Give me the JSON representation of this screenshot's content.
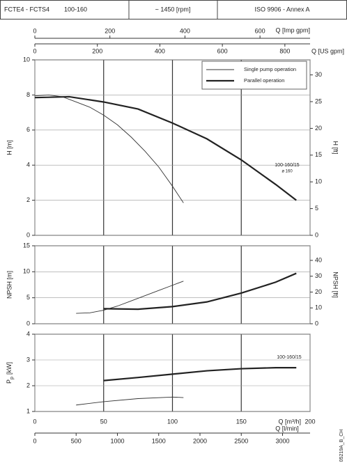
{
  "header": {
    "model": "FCTE4 - FCTS4",
    "size": "100-160",
    "speed": "~ 1450 [rpm]",
    "standard": "ISO 9906 - Annex A"
  },
  "code": "05219A_B_CH",
  "chart_data": [
    {
      "type": "line",
      "ylabel": "H [m]",
      "y2label": "H [ft]",
      "ylim": [
        0,
        10
      ],
      "yticks": [
        0,
        2,
        4,
        6,
        8,
        10
      ],
      "y2lim": [
        0,
        32.81
      ],
      "y2ticks": [
        0,
        5,
        10,
        15,
        20,
        25,
        30
      ],
      "xlim": [
        0,
        200
      ],
      "top_axes": [
        {
          "label": "Q [Imp gpm]",
          "xlim": [
            0,
            733.4
          ],
          "xticks": [
            0,
            200,
            400,
            600
          ]
        },
        {
          "label": "Q [US gpm]",
          "xlim": [
            0,
            880.6
          ],
          "xticks": [
            0,
            200,
            400,
            600,
            800
          ]
        }
      ],
      "annotations": [
        "100-160/15",
        "ø 160"
      ],
      "series": [
        {
          "name": "Single pump operation",
          "color": "#333333",
          "width": 0.9,
          "x": [
            0,
            10,
            20,
            30,
            40,
            50,
            60,
            70,
            80,
            90,
            100,
            108
          ],
          "values": [
            7.95,
            8.0,
            7.9,
            7.6,
            7.3,
            6.85,
            6.3,
            5.6,
            4.8,
            3.9,
            2.8,
            1.85
          ]
        },
        {
          "name": "Parallel operation",
          "color": "#222222",
          "width": 2.2,
          "x": [
            0,
            25,
            50,
            75,
            100,
            125,
            150,
            175,
            190
          ],
          "values": [
            7.85,
            7.9,
            7.6,
            7.2,
            6.4,
            5.5,
            4.3,
            2.9,
            2.0
          ]
        }
      ]
    },
    {
      "type": "line",
      "ylabel": "NPSH [m]",
      "y2label": "NPSH [ft]",
      "ylim": [
        0,
        15
      ],
      "yticks": [
        0,
        5,
        10,
        15
      ],
      "y2lim": [
        0,
        49.21
      ],
      "y2ticks": [
        0,
        10,
        20,
        30,
        40
      ],
      "xlim": [
        0,
        200
      ],
      "series": [
        {
          "color": "#333333",
          "width": 0.9,
          "x": [
            30,
            40,
            50,
            60,
            70,
            80,
            90,
            100,
            108
          ],
          "values": [
            2.0,
            2.1,
            2.6,
            3.4,
            4.4,
            5.4,
            6.4,
            7.4,
            8.2
          ]
        },
        {
          "color": "#222222",
          "width": 2.2,
          "x": [
            50,
            75,
            100,
            125,
            150,
            175,
            190
          ],
          "values": [
            2.9,
            2.8,
            3.3,
            4.2,
            5.9,
            8.0,
            9.7
          ]
        }
      ]
    },
    {
      "type": "line",
      "ylabel": "P",
      "ylabel_sub": "p",
      "ylabel_unit": "[kW]",
      "ylim": [
        1,
        4
      ],
      "yticks": [
        1,
        2,
        3,
        4
      ],
      "xlim": [
        0,
        200
      ],
      "xlabel": "Q [m³/h]",
      "xticks": [
        0,
        50,
        100,
        150,
        200
      ],
      "bottom_axes": [
        {
          "label": "Q [l/min]",
          "xlim": [
            0,
            3333.3
          ],
          "xticks": [
            0,
            500,
            1000,
            1500,
            2000,
            2500,
            3000
          ]
        }
      ],
      "annotations": [
        "100-160/15"
      ],
      "series": [
        {
          "color": "#333333",
          "width": 0.9,
          "x": [
            30,
            50,
            75,
            100,
            108
          ],
          "values": [
            1.25,
            1.38,
            1.5,
            1.56,
            1.54
          ]
        },
        {
          "color": "#222222",
          "width": 2.2,
          "x": [
            50,
            75,
            100,
            125,
            150,
            175,
            190
          ],
          "values": [
            2.2,
            2.32,
            2.45,
            2.58,
            2.66,
            2.7,
            2.7
          ]
        }
      ]
    }
  ]
}
